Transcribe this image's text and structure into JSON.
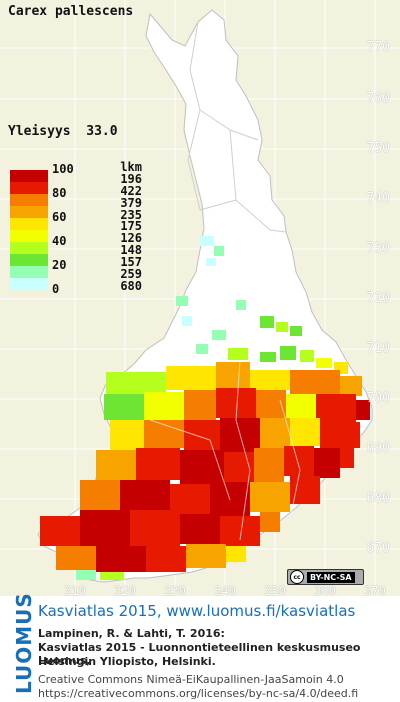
{
  "species": "Carex pallescens",
  "frequency_label": "Yleisyys",
  "frequency_value": "33.0",
  "legend": {
    "count_header": "lkm",
    "percent_labels": [
      "100",
      "80",
      "60",
      "40",
      "20",
      "0"
    ],
    "colors": [
      "#c40000",
      "#e61a00",
      "#f57d00",
      "#f7a400",
      "#ffe600",
      "#f2ff00",
      "#b4ff1e",
      "#6ce632",
      "#94ffb4",
      "#c8ffff",
      "#ffffff"
    ],
    "counts": [
      "196",
      "422",
      "379",
      "235",
      "175",
      "126",
      "148",
      "157",
      "259",
      "680"
    ]
  },
  "grid": {
    "y_ticks": [
      "770",
      "760",
      "750",
      "740",
      "730",
      "720",
      "710",
      "700",
      "690",
      "680",
      "670"
    ],
    "x_ticks": [
      "310",
      "320",
      "330",
      "340",
      "350",
      "360",
      "370"
    ]
  },
  "license_badge": "BY-NC-SA",
  "footer": {
    "logo": "LUOMUS",
    "title": "Kasviatlas 2015, www.luomus.fi/kasviatlas",
    "ref_line1": "Lampinen, R. & Lahti, T. 2016:",
    "ref_line2": "Kasviatlas 2015 - Luonnontieteellinen keskusmuseo Luomus,",
    "ref_line3": "Helsingin Yliopisto, Helsinki.",
    "license_line1": "Creative Commons Nimeä-EiKaupallinen-JaaSamoin 4.0",
    "license_line2": "https://creativecommons.org/licenses/by-nc-sa/4.0/deed.fi"
  }
}
